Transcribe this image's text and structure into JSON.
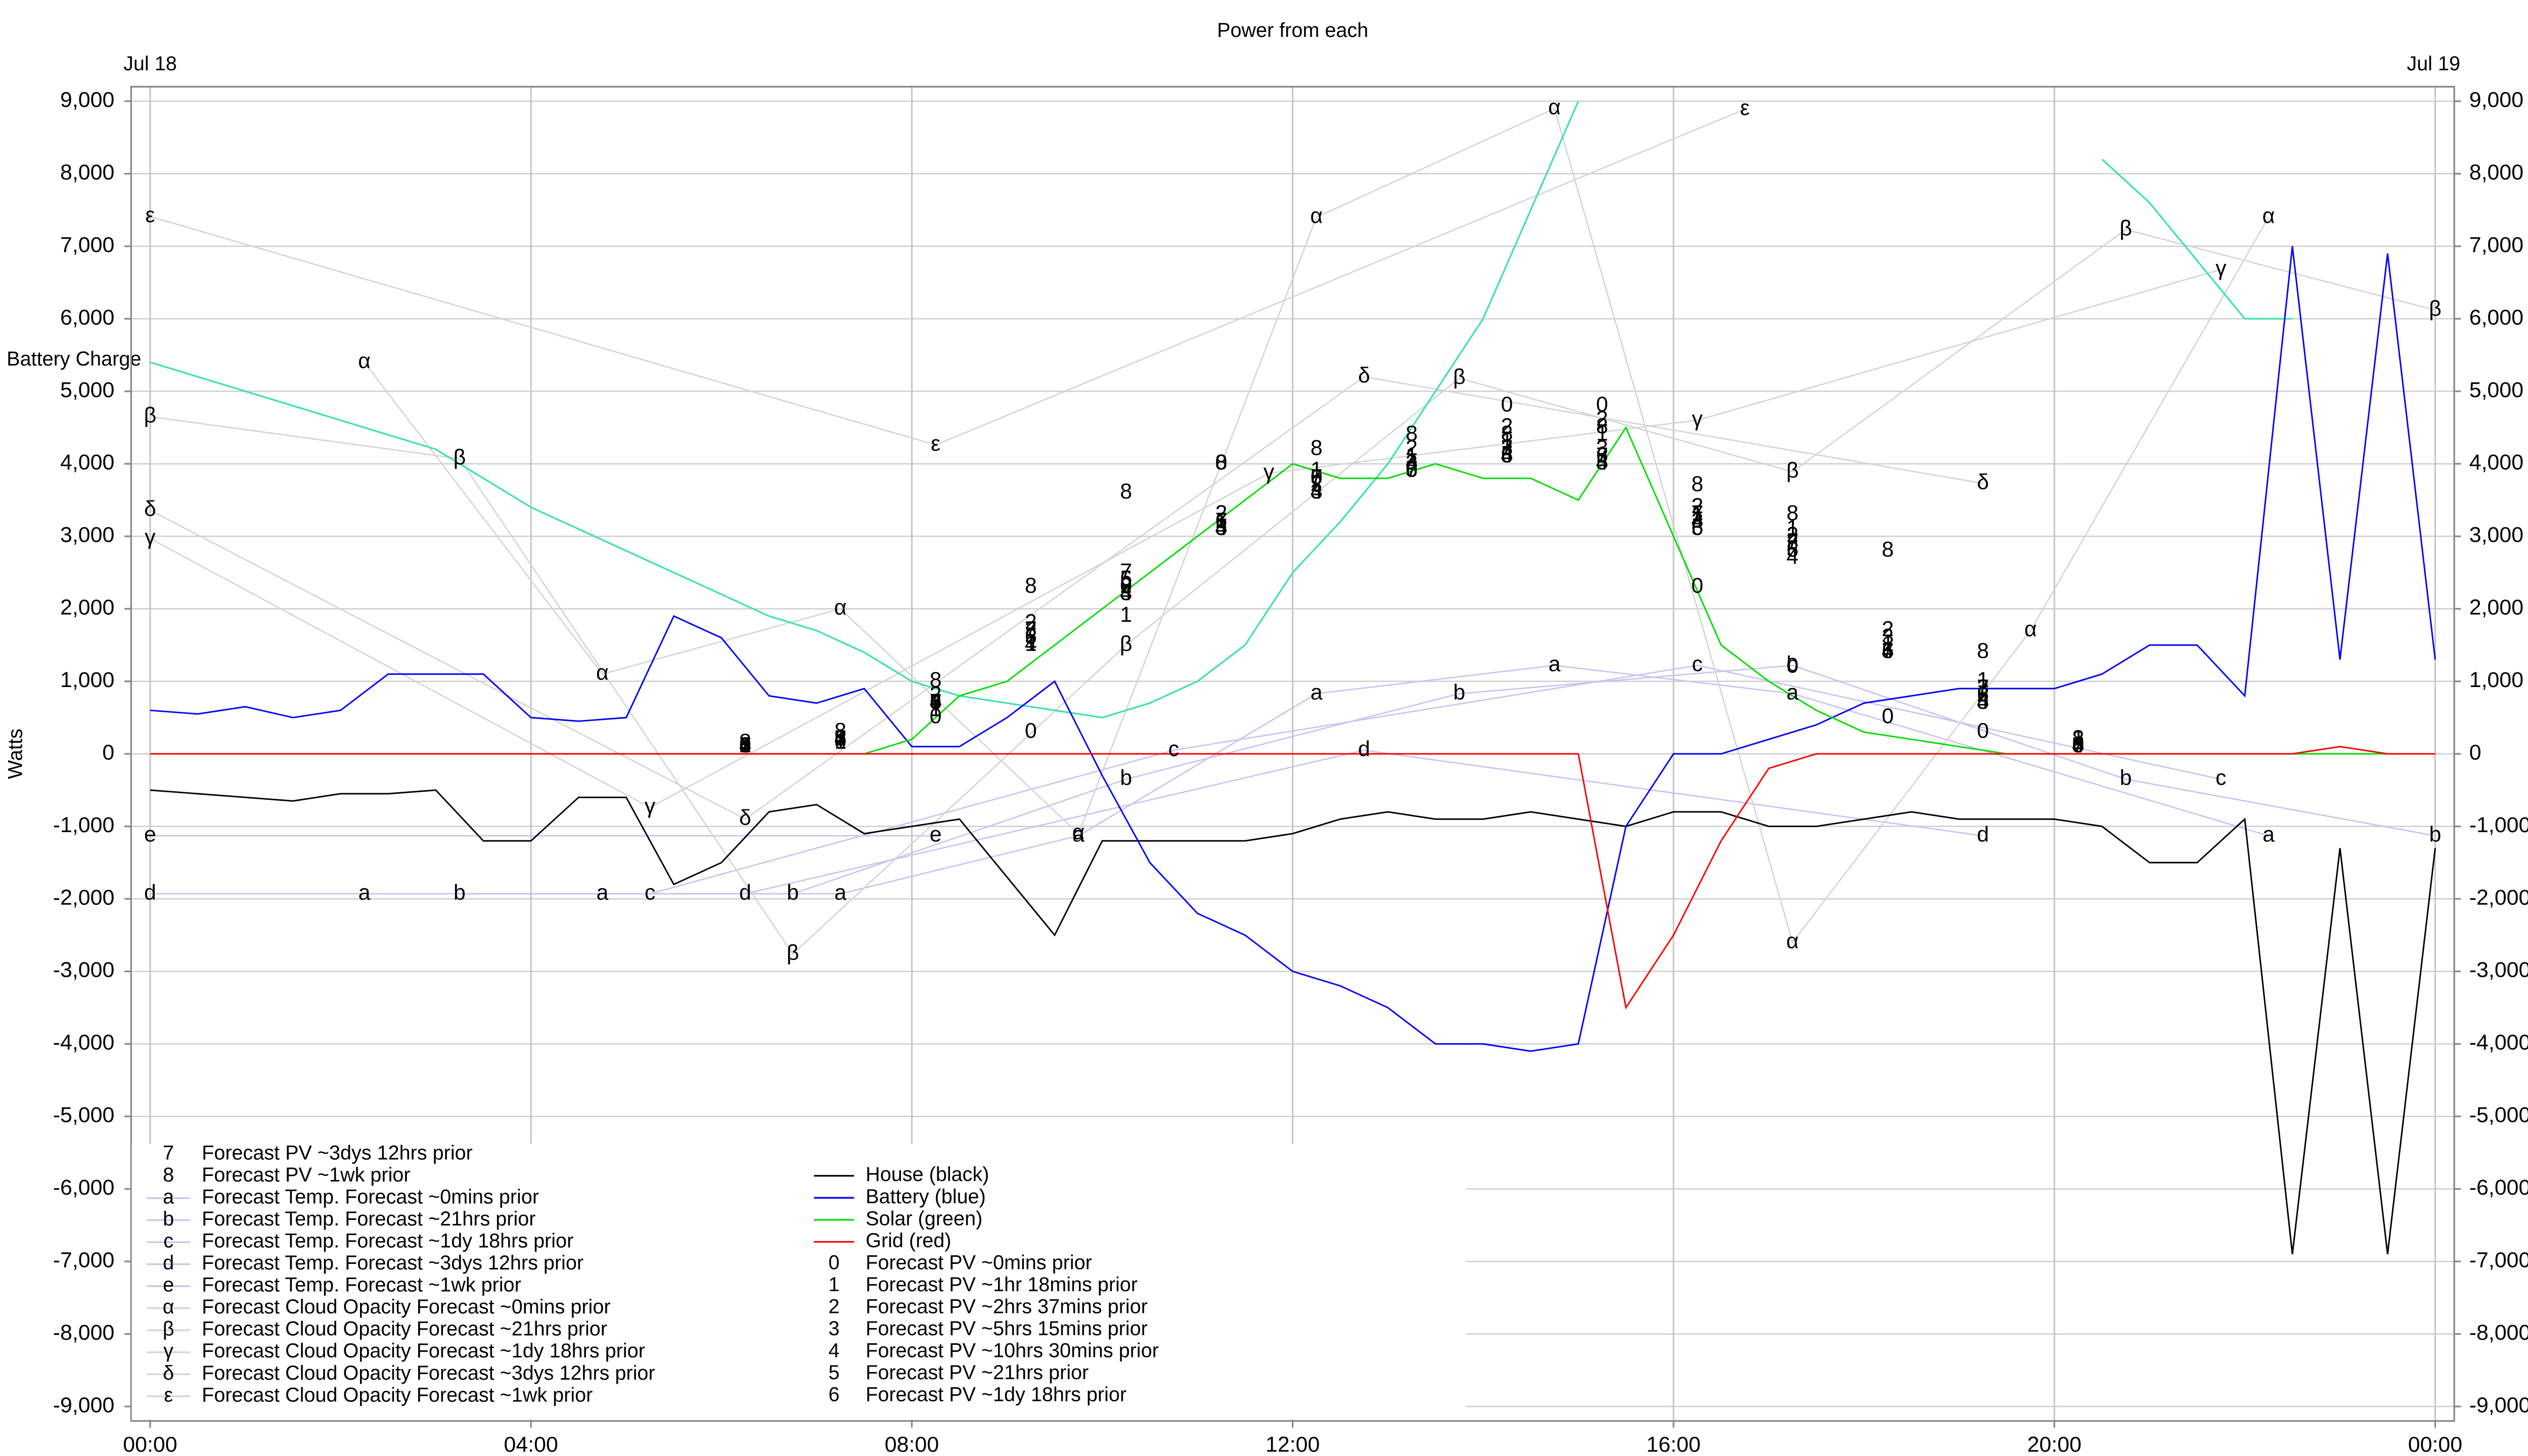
{
  "chart_data": {
    "type": "line",
    "title": "Power from each",
    "date_labels": [
      "Jul 18",
      "Jul 19"
    ],
    "ylabel": "Watts",
    "grid": true,
    "xlim": [
      -0.2,
      24.2
    ],
    "ylim": [
      -9200,
      9200
    ],
    "xticks": [
      {
        "value": 0,
        "label": "00:00"
      },
      {
        "value": 4,
        "label": "04:00"
      },
      {
        "value": 8,
        "label": "08:00"
      },
      {
        "value": 12,
        "label": "12:00"
      },
      {
        "value": 16,
        "label": "16:00"
      },
      {
        "value": 20,
        "label": "20:00"
      },
      {
        "value": 24,
        "label": "00:00"
      }
    ],
    "yticks": [
      {
        "value": 9000,
        "label": "9,000"
      },
      {
        "value": 8000,
        "label": "8,000"
      },
      {
        "value": 7000,
        "label": "7,000"
      },
      {
        "value": 6000,
        "label": "6,000"
      },
      {
        "value": 5000,
        "label": "5,000"
      },
      {
        "value": 4000,
        "label": "4,000"
      },
      {
        "value": 3000,
        "label": "3,000"
      },
      {
        "value": 2000,
        "label": "2,000"
      },
      {
        "value": 1000,
        "label": "1,000"
      },
      0,
      {
        "value": -1000,
        "label": "-1,000"
      },
      {
        "value": -2000,
        "label": "-2,000"
      },
      {
        "value": -3000,
        "label": "-3,000"
      },
      {
        "value": -4000,
        "label": "-4,000"
      },
      {
        "value": -5000,
        "label": "-5,000"
      },
      {
        "value": -6000,
        "label": "-6,000"
      },
      {
        "value": -7000,
        "label": "-7,000"
      },
      {
        "value": -8000,
        "label": "-8,000"
      },
      {
        "value": -9000,
        "label": "-9,000"
      }
    ],
    "x": [
      0,
      0.5,
      1,
      1.5,
      2,
      2.5,
      3,
      3.5,
      4,
      4.5,
      5,
      5.5,
      6,
      6.5,
      7,
      7.5,
      8,
      8.5,
      9,
      9.5,
      10,
      10.5,
      11,
      11.5,
      12,
      12.5,
      13,
      13.5,
      14,
      14.5,
      15,
      15.5,
      16,
      16.5,
      17,
      17.5,
      18,
      18.5,
      19,
      19.5,
      20,
      20.5,
      21,
      21.5,
      22,
      22.5,
      23,
      23.5,
      24
    ],
    "series": [
      {
        "name": "House (black)",
        "color": "#000000",
        "values": [
          -500,
          -550,
          -600,
          -650,
          -550,
          -550,
          -500,
          -1200,
          -1200,
          -600,
          -600,
          -1800,
          -1500,
          -800,
          -700,
          -1100,
          -1000,
          -900,
          -1700,
          -2500,
          -1200,
          -1200,
          -1200,
          -1200,
          -1100,
          -900,
          -800,
          -900,
          -900,
          -800,
          -900,
          -1000,
          -800,
          -800,
          -1000,
          -1000,
          -900,
          -800,
          -900,
          -900,
          -900,
          -1000,
          -1500,
          -1500,
          -900,
          -6900,
          -1300,
          -6900,
          -1300
        ]
      },
      {
        "name": "Battery (blue)",
        "color": "#0000ff",
        "values": [
          600,
          550,
          650,
          500,
          600,
          1100,
          1100,
          1100,
          500,
          450,
          500,
          1900,
          1600,
          800,
          700,
          900,
          100,
          100,
          500,
          1000,
          -300,
          -1500,
          -2200,
          -2500,
          -3000,
          -3200,
          -3500,
          -4000,
          -4000,
          -4100,
          -4000,
          -1000,
          0,
          0,
          200,
          400,
          700,
          800,
          900,
          900,
          900,
          1100,
          1500,
          1500,
          800,
          7000,
          1300,
          6900,
          1300
        ]
      },
      {
        "name": "Solar (green)",
        "color": "#00dd00",
        "values": [
          0,
          0,
          0,
          0,
          0,
          0,
          0,
          0,
          0,
          0,
          0,
          0,
          0,
          0,
          0,
          0,
          200,
          800,
          1000,
          1500,
          2000,
          2500,
          3000,
          3500,
          4000,
          3800,
          3800,
          4000,
          3800,
          3800,
          3500,
          4500,
          3000,
          1500,
          1000,
          600,
          300,
          200,
          100,
          0,
          0,
          0,
          0,
          0,
          0,
          0,
          0,
          0,
          0
        ]
      },
      {
        "name": "Grid (red)",
        "color": "#ff0000",
        "values": [
          0,
          0,
          0,
          0,
          0,
          0,
          0,
          0,
          0,
          0,
          0,
          0,
          0,
          0,
          0,
          0,
          0,
          0,
          0,
          0,
          0,
          0,
          0,
          0,
          0,
          0,
          0,
          0,
          0,
          0,
          0,
          -3500,
          -2500,
          -1200,
          -200,
          0,
          0,
          0,
          0,
          0,
          0,
          0,
          0,
          0,
          0,
          0,
          100,
          0,
          0
        ]
      }
    ],
    "battery_charge": {
      "label": "Battery Charge",
      "color": "#40e0b0",
      "values": [
        5400,
        5200,
        5000,
        4800,
        4600,
        4400,
        4200,
        3800,
        3400,
        3100,
        2800,
        2500,
        2200,
        1900,
        1700,
        1400,
        1000,
        800,
        700,
        600,
        500,
        700,
        1000,
        1500,
        2500,
        3200,
        4000,
        5000,
        6000,
        7500,
        9000,
        null,
        null,
        null,
        null,
        null,
        null,
        null,
        null,
        null,
        null,
        8200,
        7600,
        6800,
        6000,
        6000,
        null,
        null,
        null
      ]
    },
    "pv_forecast_x": [
      6.25,
      7.25,
      8.25,
      9.25,
      10.25,
      11.25,
      12.25,
      13.25,
      14.25,
      15.25,
      16.25,
      17.25,
      18.25,
      19.25,
      20.25
    ],
    "pv_forecasts": [
      {
        "marker": "0",
        "name": "Forecast PV ~0mins prior",
        "values": [
          100,
          150,
          500,
          300,
          2300,
          4000,
          3800,
          3900,
          4800,
          4800,
          2300,
          1200,
          500,
          300,
          100
        ]
      },
      {
        "marker": "1",
        "name": "Forecast PV ~1hr 18mins prior",
        "values": [
          100,
          150,
          600,
          1500,
          1900,
          3200,
          3900,
          4100,
          4300,
          4400,
          3300,
          3100,
          1500,
          1000,
          200
        ]
      },
      {
        "marker": "2",
        "name": "Forecast PV ~2hrs 37mins prior",
        "values": [
          100,
          200,
          800,
          1800,
          2300,
          3300,
          3700,
          4200,
          4500,
          4600,
          3400,
          3000,
          1700,
          800,
          200
        ]
      },
      {
        "marker": "3",
        "name": "Forecast PV ~5hrs 15mins prior",
        "values": [
          100,
          200,
          700,
          1700,
          2200,
          3100,
          3600,
          4000,
          4200,
          4200,
          3200,
          2900,
          1600,
          900,
          200
        ]
      },
      {
        "marker": "4",
        "name": "Forecast PV ~10hrs 30mins prior",
        "values": [
          100,
          200,
          700,
          1500,
          2200,
          3100,
          3600,
          4000,
          4100,
          4000,
          3200,
          2700,
          1400,
          700,
          100
        ]
      },
      {
        "marker": "5",
        "name": "Forecast PV ~21hrs prior",
        "values": [
          100,
          200,
          700,
          1600,
          2400,
          3100,
          3800,
          3900,
          4100,
          4000,
          3100,
          2800,
          1400,
          700,
          100
        ]
      },
      {
        "marker": "6",
        "name": "Forecast PV ~1dy 18hrs prior",
        "values": [
          100,
          200,
          700,
          1600,
          2400,
          3200,
          3800,
          3900,
          4100,
          4100,
          3100,
          2800,
          1400,
          800,
          100
        ]
      },
      {
        "marker": "7",
        "name": "Forecast PV ~3dys 12hrs prior",
        "values": [
          100,
          200,
          700,
          1700,
          2500,
          3200,
          3800,
          3900,
          4200,
          4100,
          3300,
          2900,
          1400,
          900,
          100
        ]
      },
      {
        "marker": "8",
        "name": "Forecast PV ~1wk prior",
        "values": [
          150,
          300,
          1000,
          2300,
          3600,
          4000,
          4200,
          4400,
          4400,
          4500,
          3700,
          3300,
          2800,
          1400,
          200
        ]
      }
    ],
    "forecasts": [
      {
        "marker": "a",
        "name": "Forecast Temp. Forecast ~0mins prior",
        "color": "#c4c4f4",
        "x": [
          2.25,
          4.75,
          7.25,
          9.75,
          12.25,
          14.75,
          17.25,
          22.25
        ],
        "values": [
          -1930,
          -1930,
          -1930,
          -1130,
          830,
          1220,
          830,
          -1130
        ]
      },
      {
        "marker": "b",
        "name": "Forecast Temp. Forecast ~21hrs prior",
        "color": "#c4c4f4",
        "x": [
          3.25,
          6.75,
          10.25,
          13.75,
          17.25,
          20.75,
          24
        ],
        "values": [
          -1930,
          -1930,
          -350,
          830,
          1220,
          -350,
          -1130
        ]
      },
      {
        "marker": "c",
        "name": "Forecast Temp. Forecast ~1dy 18hrs prior",
        "color": "#c4c4f4",
        "x": [
          5.25,
          10.75,
          16.25,
          21.75
        ],
        "values": [
          -1930,
          50,
          1220,
          -350
        ]
      },
      {
        "marker": "d",
        "name": "Forecast Temp. Forecast ~3dys 12hrs prior",
        "color": "#c4c4f4",
        "x": [
          0,
          6.25,
          12.75,
          19.25
        ],
        "values": [
          -1930,
          -1930,
          50,
          -1130
        ]
      },
      {
        "marker": "e",
        "name": "Forecast Temp. Forecast ~1wk prior",
        "color": "#c4c4f4",
        "x": [
          0,
          8.25
        ],
        "values": [
          -1130,
          -1130
        ]
      },
      {
        "marker": "α",
        "name": "Forecast Cloud Opacity Forecast ~0mins prior",
        "color": "#d4d4d4",
        "x": [
          2.25,
          4.75,
          7.25,
          9.75,
          12.25,
          14.75,
          17.25,
          19.75,
          22.25
        ],
        "values": [
          5400,
          1100,
          2000,
          -1100,
          7400,
          8900,
          -2600,
          1700,
          7400
        ]
      },
      {
        "marker": "β",
        "name": "Forecast Cloud Opacity Forecast ~21hrs prior",
        "color": "#d4d4d4",
        "x": [
          0,
          3.25,
          6.75,
          10.25,
          13.75,
          17.25,
          20.75,
          24
        ],
        "values": [
          4650,
          4070,
          -2760,
          1500,
          5180,
          3890,
          7230,
          6120
        ]
      },
      {
        "marker": "γ",
        "name": "Forecast Cloud Opacity Forecast ~1dy 18hrs prior",
        "color": "#d4d4d4",
        "x": [
          0,
          5.25,
          11.75,
          16.25,
          21.75
        ],
        "values": [
          2970,
          -740,
          3870,
          4600,
          6680
        ]
      },
      {
        "marker": "δ",
        "name": "Forecast Cloud Opacity Forecast ~3dys 12hrs prior",
        "color": "#d4d4d4",
        "x": [
          0,
          6.25,
          12.75,
          19.25
        ],
        "values": [
          3360,
          -900,
          5200,
          3730
        ]
      },
      {
        "marker": "ε",
        "name": "Forecast Cloud Opacity Forecast ~1wk prior",
        "color": "#d4d4d4",
        "x": [
          0,
          8.25,
          16.75
        ],
        "values": [
          7410,
          4260,
          8890
        ]
      }
    ]
  }
}
